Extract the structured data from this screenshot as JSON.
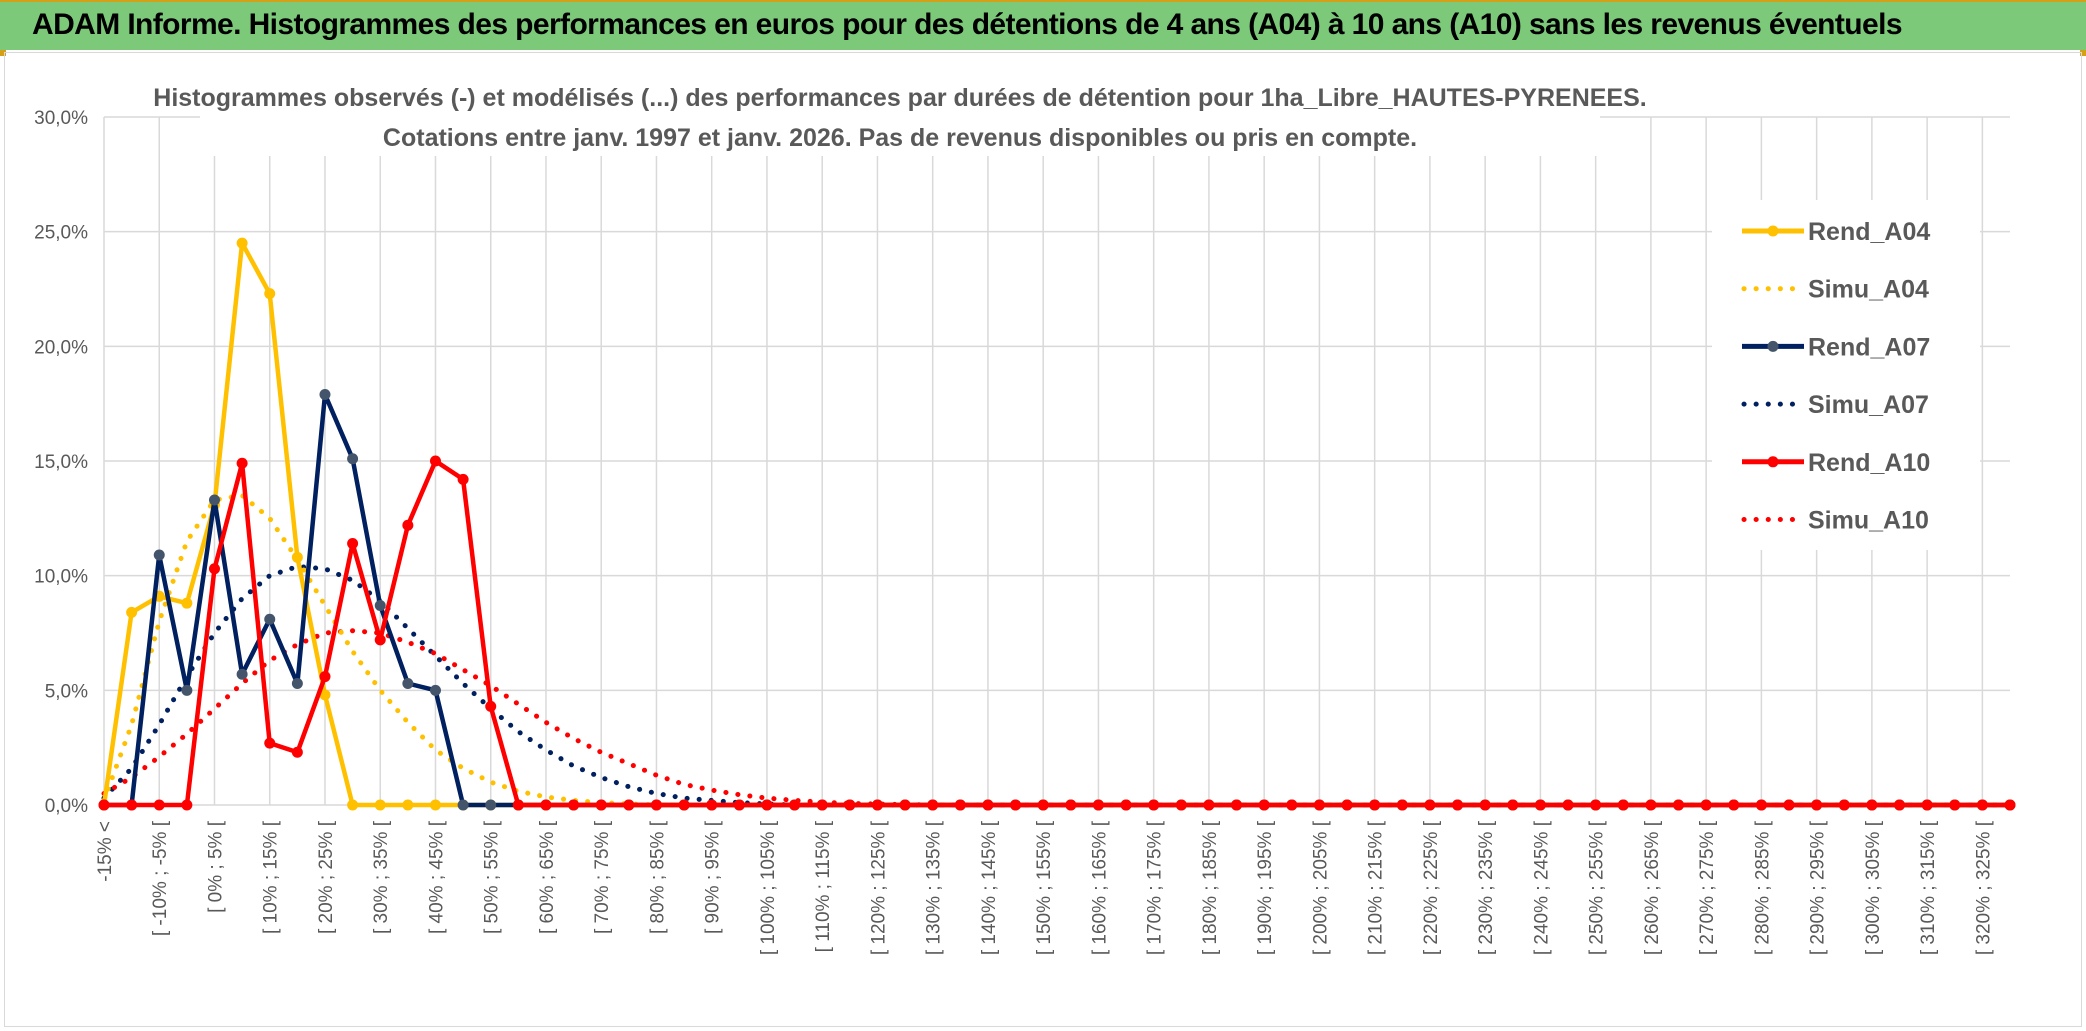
{
  "banner": {
    "title": "ADAM Informe. Histogrammes des performances en euros pour des détentions de 4 ans (A04) à 10 ans (A10) sans les revenus éventuels"
  },
  "chart_data": {
    "type": "line",
    "title_line1": "Histogrammes observés (-) et modélisés (...) des performances par durées de détention pour 1ha_Libre_HAUTES-PYRENEES.",
    "title_line2": "Cotations entre janv. 1997 et janv. 2026. Pas de revenus disponibles ou pris en compte.",
    "ylim": [
      0,
      30
    ],
    "y_ticks": [
      "0,0%",
      "5,0%",
      "10,0%",
      "15,0%",
      "20,0%",
      "25,0%",
      "30,0%"
    ],
    "grid": true,
    "legend_position": "right",
    "x_labels": [
      "-15% <",
      "[ -10% ; -5% [",
      "[ 0% ; 5% [",
      "[ 10% ; 15% [",
      "[ 20% ; 25% [",
      "[ 30% ; 35% [",
      "[ 40% ; 45% [",
      "[ 50% ; 55% [",
      "[ 60% ; 65% [",
      "[ 70% ; 75% [",
      "[ 80% ; 85% [",
      "[ 90% ; 95% [",
      "[ 100% ; 105% [",
      "[ 110% ; 115% [",
      "[ 120% ; 125% [",
      "[ 130% ; 135% [",
      "[ 140% ; 145% [",
      "[ 150% ; 155% [",
      "[ 160% ; 165% [",
      "[ 170% ; 175% [",
      "[ 180% ; 185% [",
      "[ 190% ; 195% [",
      "[ 200% ; 205% [",
      "[ 210% ; 215% [",
      "[ 220% ; 225% [",
      "[ 230% ; 235% [",
      "[ 240% ; 245% [",
      "[ 250% ; 255% [",
      "[ 260% ; 265% [",
      "[ 270% ; 275% [",
      "[ 280% ; 285% [",
      "[ 290% ; 295% [",
      "[ 300% ; 305% [",
      "[ 310% ; 315% [",
      "[ 320% ; 325% ["
    ],
    "series": [
      {
        "name": "Rend_A04",
        "color": "#ffc000",
        "style": "solid",
        "values": [
          0,
          8.4,
          9.1,
          8.8,
          13.1,
          24.5,
          22.3,
          10.8,
          4.8,
          0,
          0,
          0,
          0,
          0,
          0,
          0,
          0,
          0,
          0,
          0,
          0,
          0,
          0,
          0,
          0,
          0,
          0,
          0,
          0,
          0,
          0,
          0,
          0,
          0,
          0,
          0,
          0,
          0,
          0,
          0,
          0,
          0,
          0,
          0,
          0,
          0,
          0,
          0,
          0,
          0,
          0,
          0,
          0,
          0,
          0,
          0,
          0,
          0,
          0,
          0,
          0,
          0,
          0,
          0,
          0,
          0,
          0,
          0,
          0,
          0
        ]
      },
      {
        "name": "Simu_A04",
        "color": "#ffc000",
        "style": "dotted",
        "values": [
          0.2,
          3.5,
          8.0,
          11.5,
          13.3,
          13.5,
          12.5,
          10.7,
          8.7,
          6.7,
          5.0,
          3.6,
          2.4,
          1.6,
          1.0,
          0.6,
          0.35,
          0.2,
          0.1,
          0.05,
          0,
          0,
          0,
          0,
          0,
          0,
          0,
          0,
          0,
          0,
          0,
          0,
          0,
          0,
          0,
          0,
          0,
          0,
          0,
          0,
          0,
          0,
          0,
          0,
          0,
          0,
          0,
          0,
          0,
          0,
          0,
          0,
          0,
          0,
          0,
          0,
          0,
          0,
          0,
          0,
          0,
          0,
          0,
          0,
          0,
          0,
          0,
          0,
          0,
          0
        ]
      },
      {
        "name": "Rend_A07",
        "color": "#002060",
        "style": "solid",
        "values": [
          0,
          0,
          10.9,
          5.0,
          13.3,
          5.7,
          8.1,
          5.3,
          17.9,
          15.1,
          8.7,
          5.3,
          5.0,
          0,
          0,
          0,
          0,
          0,
          0,
          0,
          0,
          0,
          0,
          0,
          0,
          0,
          0,
          0,
          0,
          0,
          0,
          0,
          0,
          0,
          0,
          0,
          0,
          0,
          0,
          0,
          0,
          0,
          0,
          0,
          0,
          0,
          0,
          0,
          0,
          0,
          0,
          0,
          0,
          0,
          0,
          0,
          0,
          0,
          0,
          0,
          0,
          0,
          0,
          0,
          0,
          0,
          0,
          0,
          0,
          0
        ]
      },
      {
        "name": "Simu_A07",
        "color": "#002060",
        "style": "dotted",
        "values": [
          0.3,
          1.6,
          3.5,
          5.6,
          7.5,
          9.0,
          10.0,
          10.4,
          10.3,
          9.8,
          8.9,
          7.7,
          6.5,
          5.3,
          4.2,
          3.2,
          2.4,
          1.7,
          1.2,
          0.8,
          0.5,
          0.3,
          0.2,
          0.1,
          0.05,
          0,
          0,
          0,
          0,
          0,
          0,
          0,
          0,
          0,
          0,
          0,
          0,
          0,
          0,
          0,
          0,
          0,
          0,
          0,
          0,
          0,
          0,
          0,
          0,
          0,
          0,
          0,
          0,
          0,
          0,
          0,
          0,
          0,
          0,
          0,
          0,
          0,
          0,
          0,
          0,
          0,
          0,
          0,
          0,
          0
        ]
      },
      {
        "name": "Rend_A10",
        "color": "#ff0000",
        "style": "solid",
        "values": [
          0,
          0,
          0,
          0,
          10.3,
          14.9,
          2.7,
          2.3,
          5.6,
          11.4,
          7.2,
          12.2,
          15.0,
          14.2,
          4.3,
          0,
          0,
          0,
          0,
          0,
          0,
          0,
          0,
          0,
          0,
          0,
          0,
          0,
          0,
          0,
          0,
          0,
          0,
          0,
          0,
          0,
          0,
          0,
          0,
          0,
          0,
          0,
          0,
          0,
          0,
          0,
          0,
          0,
          0,
          0,
          0,
          0,
          0,
          0,
          0,
          0,
          0,
          0,
          0,
          0,
          0,
          0,
          0,
          0,
          0,
          0,
          0,
          0,
          0,
          0
        ]
      },
      {
        "name": "Simu_A10",
        "color": "#ff0000",
        "style": "dotted",
        "values": [
          0.5,
          1.2,
          2.1,
          3.1,
          4.2,
          5.3,
          6.3,
          7.0,
          7.5,
          7.6,
          7.5,
          7.1,
          6.6,
          5.9,
          5.2,
          4.4,
          3.6,
          2.9,
          2.3,
          1.8,
          1.3,
          0.9,
          0.65,
          0.45,
          0.3,
          0.2,
          0.12,
          0.07,
          0.04,
          0.02,
          0,
          0,
          0,
          0,
          0,
          0,
          0,
          0,
          0,
          0,
          0,
          0,
          0,
          0,
          0,
          0,
          0,
          0,
          0,
          0,
          0,
          0,
          0,
          0,
          0,
          0,
          0,
          0,
          0,
          0,
          0,
          0,
          0,
          0,
          0,
          0,
          0,
          0,
          0,
          0
        ]
      }
    ]
  }
}
